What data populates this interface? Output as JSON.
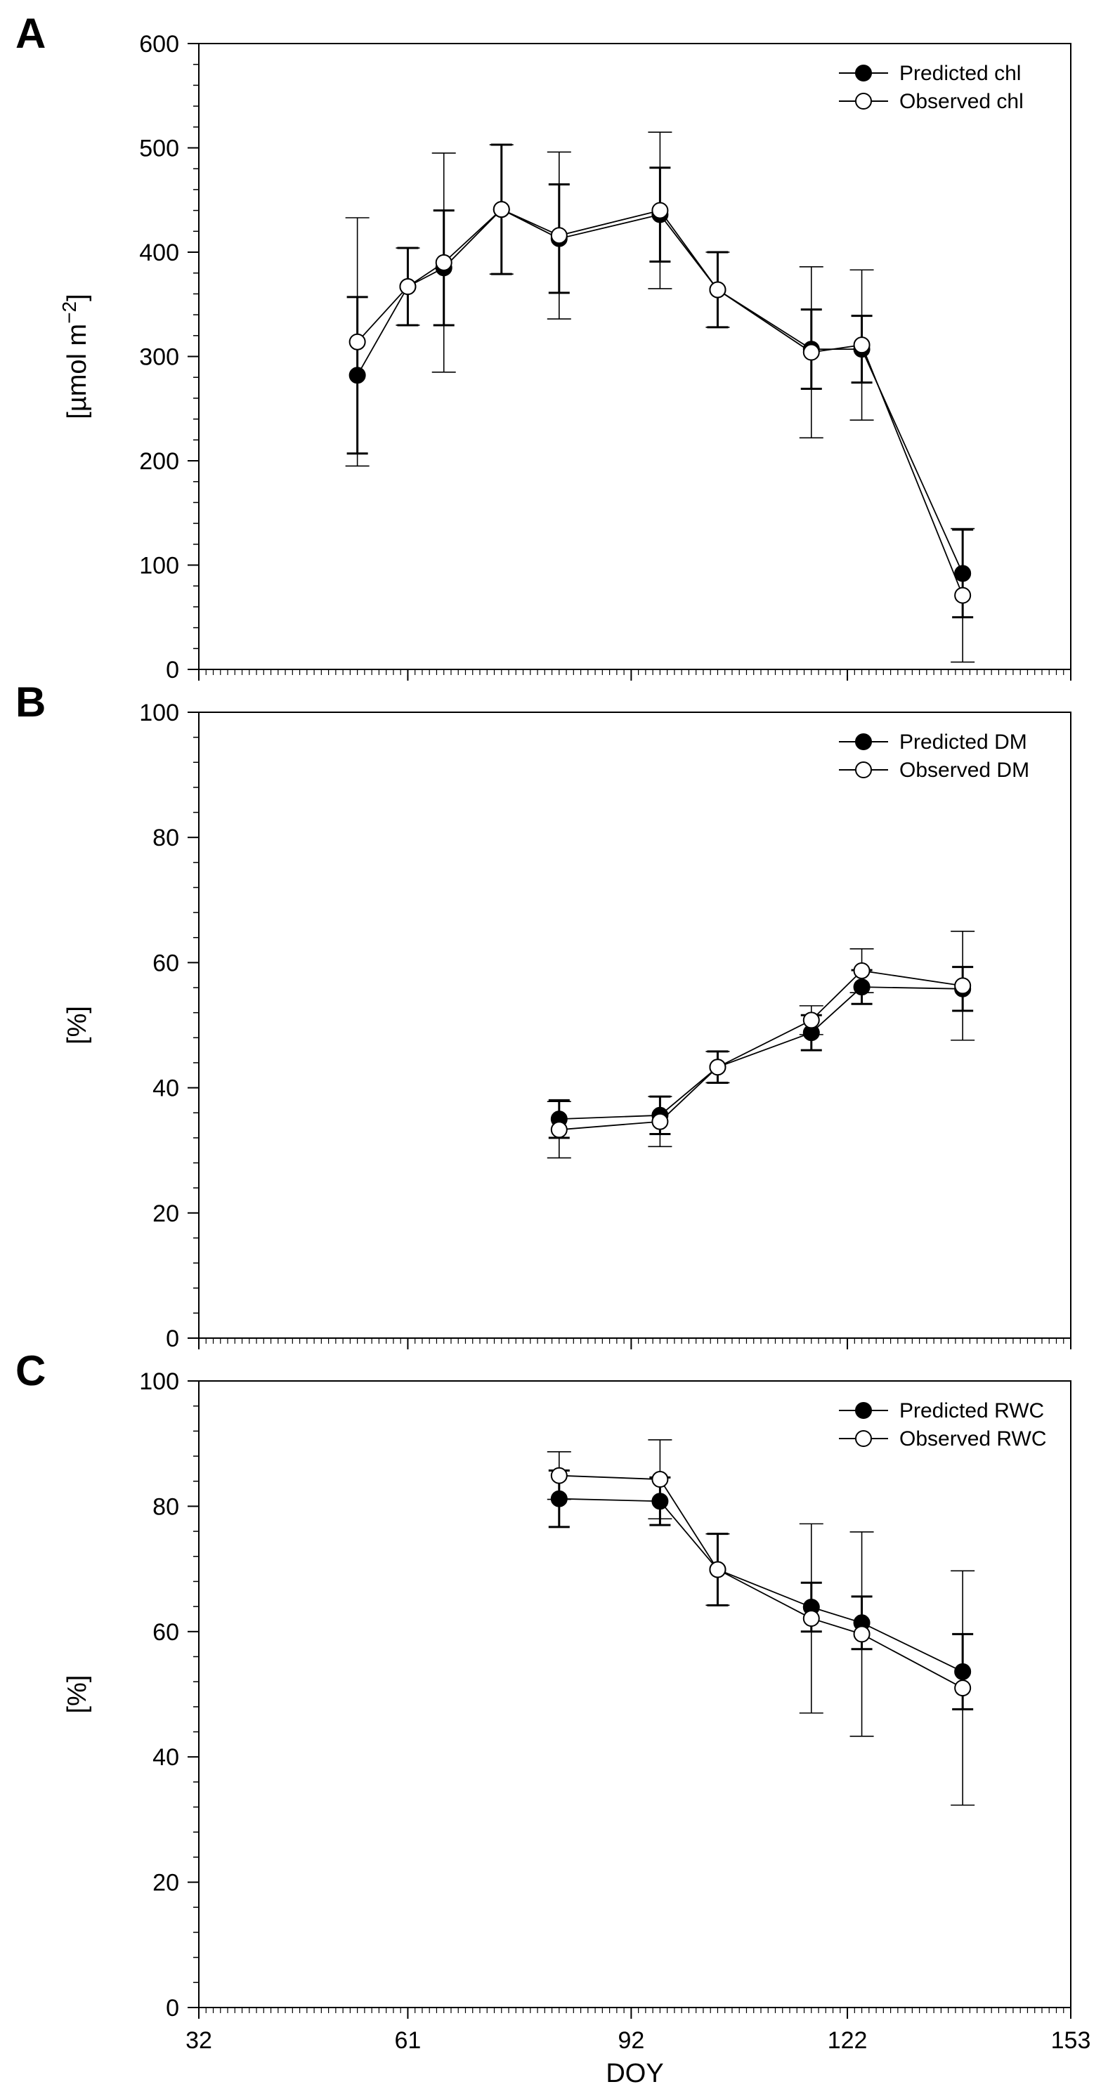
{
  "chart_data": [
    {
      "type": "line",
      "panel_label": "A",
      "ylabel": "[µmol m−2]",
      "ylabel_parts": {
        "main": "[µmol m",
        "sup": "−2",
        "end": "]"
      },
      "ylim": [
        0,
        600
      ],
      "yticks": [
        0,
        100,
        200,
        300,
        400,
        500,
        600
      ],
      "xlim": [
        32,
        153
      ],
      "legend_position": "top-right",
      "series": [
        {
          "name": "Predicted chl",
          "marker": "filled",
          "x": [
            54,
            61,
            66,
            74,
            82,
            96,
            104,
            117,
            124,
            138
          ],
          "y": [
            282,
            367,
            385,
            441,
            413,
            436,
            364,
            307,
            307,
            92
          ],
          "err": [
            75,
            37,
            55,
            62,
            52,
            45,
            36,
            38,
            32,
            42
          ]
        },
        {
          "name": "Observed chl",
          "marker": "open",
          "x": [
            54,
            61,
            66,
            74,
            82,
            96,
            104,
            117,
            124,
            138
          ],
          "y": [
            314,
            367,
            390,
            441,
            416,
            440,
            364,
            304,
            311,
            71
          ],
          "err": [
            119,
            37,
            105,
            62,
            80,
            75,
            36,
            82,
            72,
            64
          ]
        }
      ]
    },
    {
      "type": "line",
      "panel_label": "B",
      "ylabel": "[%]",
      "ylim": [
        0,
        100
      ],
      "yticks": [
        0,
        20,
        40,
        60,
        80,
        100
      ],
      "xlim": [
        32,
        153
      ],
      "legend_position": "top-right",
      "series": [
        {
          "name": "Predicted DM",
          "marker": "filled",
          "x": [
            82,
            96,
            104,
            117,
            124,
            138
          ],
          "y": [
            35,
            35.6,
            43.3,
            48.8,
            56.1,
            55.8
          ],
          "err": [
            3,
            3,
            2.5,
            2.8,
            2.7,
            3.5
          ]
        },
        {
          "name": "Observed DM",
          "marker": "open",
          "x": [
            82,
            96,
            104,
            117,
            124,
            138
          ],
          "y": [
            33.3,
            34.6,
            43.3,
            50.8,
            58.7,
            56.3
          ],
          "err": [
            4.5,
            4,
            2.5,
            2.3,
            3.5,
            8.7
          ]
        }
      ]
    },
    {
      "type": "line",
      "panel_label": "C",
      "ylabel": "[%]",
      "xlabel": "DOY",
      "ylim": [
        0,
        100
      ],
      "yticks": [
        0,
        20,
        40,
        60,
        80,
        100
      ],
      "xlim": [
        32,
        153
      ],
      "xticks": [
        32,
        61,
        92,
        122,
        153
      ],
      "legend_position": "top-right",
      "series": [
        {
          "name": "Predicted RWC",
          "marker": "filled",
          "x": [
            82,
            96,
            104,
            117,
            124,
            138
          ],
          "y": [
            81.2,
            80.8,
            69.9,
            63.9,
            61.4,
            53.6
          ],
          "err": [
            4.5,
            3.8,
            5.7,
            3.9,
            4.2,
            6
          ]
        },
        {
          "name": "Observed RWC",
          "marker": "open",
          "x": [
            82,
            96,
            104,
            117,
            124,
            138
          ],
          "y": [
            84.9,
            84.3,
            69.9,
            62.1,
            59.6,
            51
          ],
          "err": [
            3.8,
            6.3,
            5.7,
            15.1,
            16.3,
            18.7
          ]
        }
      ]
    }
  ]
}
